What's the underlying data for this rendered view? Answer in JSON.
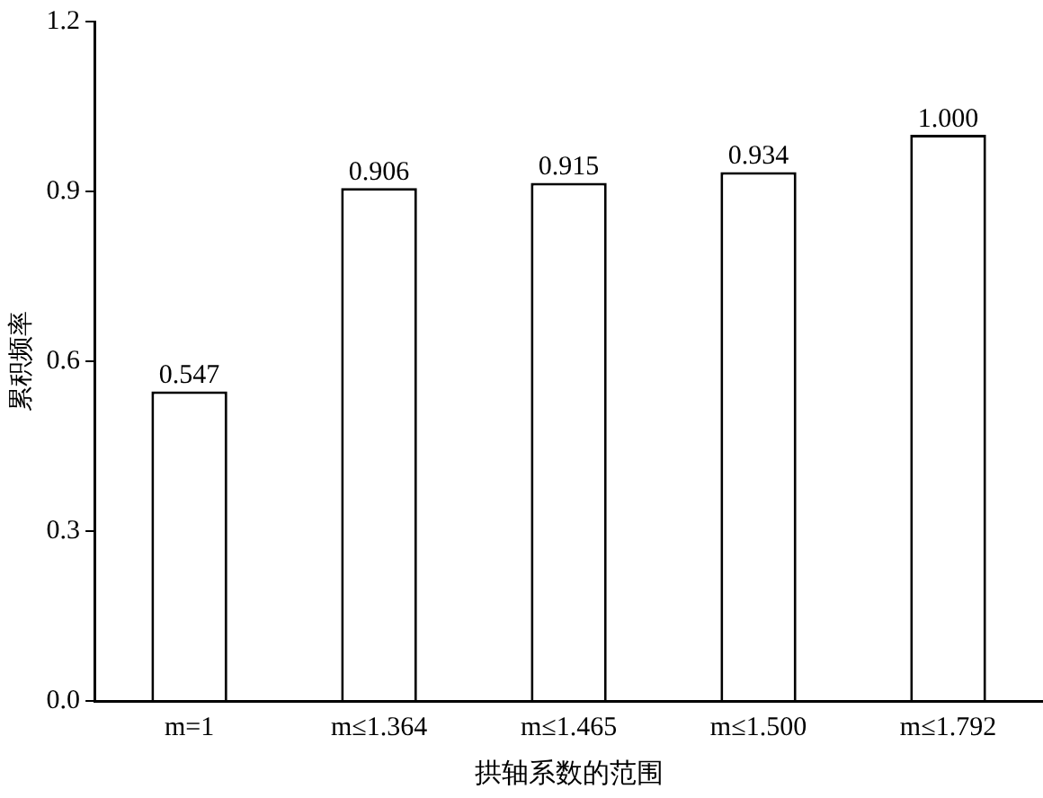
{
  "chart_data": {
    "type": "bar",
    "xlabel": "拱轴系数的范围",
    "ylabel": "累积频率",
    "categories": [
      "m=1",
      "m≤1.364",
      "m≤1.465",
      "m≤1.500",
      "m≤1.792"
    ],
    "values": [
      0.547,
      0.906,
      0.915,
      0.934,
      1.0
    ],
    "value_labels": [
      "0.547",
      "0.906",
      "0.915",
      "0.934",
      "1.000"
    ],
    "color": "#ffffff",
    "ylim": [
      0,
      1.2
    ],
    "yticks": [
      {
        "value": 0,
        "label": "0.0"
      },
      {
        "value": 0.3,
        "label": "0.3"
      },
      {
        "value": 0.6,
        "label": "0.6"
      },
      {
        "value": 0.9,
        "label": "0.9"
      },
      {
        "value": 1.2,
        "label": "1.2"
      }
    ],
    "grid": false,
    "legend": false
  }
}
